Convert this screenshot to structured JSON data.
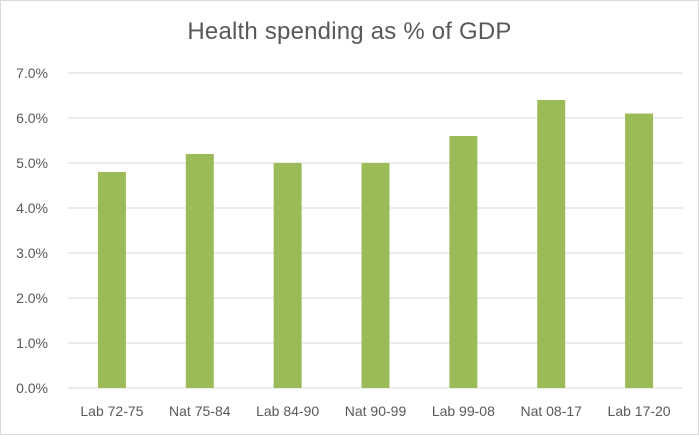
{
  "chart_data": {
    "type": "bar",
    "title": "Health spending as % of GDP",
    "xlabel": "",
    "ylabel": "",
    "categories": [
      "Lab 72-75",
      "Nat 75-84",
      "Lab 84-90",
      "Nat 90-99",
      "Lab 99-08",
      "Nat 08-17",
      "Lab 17-20"
    ],
    "series": [
      {
        "values": [
          4.8,
          5.2,
          5.0,
          5.0,
          5.6,
          6.4,
          6.1
        ],
        "color": "#9bbb59"
      }
    ],
    "ylim": [
      0,
      7
    ],
    "yticks": [
      0,
      1,
      2,
      3,
      4,
      5,
      6,
      7
    ],
    "ytick_labels": [
      "0.0%",
      "1.0%",
      "2.0%",
      "3.0%",
      "4.0%",
      "5.0%",
      "6.0%",
      "7.0%"
    ],
    "grid": true,
    "legend": "none",
    "colors": {
      "bar": "#9bbb59",
      "grid": "#d9d9d9",
      "text": "#595959",
      "border": "#d9d9d9"
    }
  }
}
